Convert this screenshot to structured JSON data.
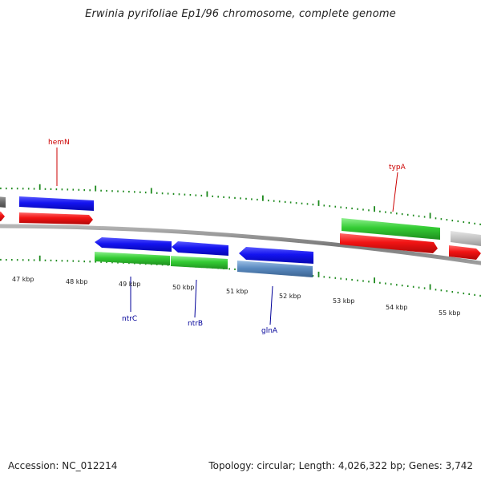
{
  "title": "Erwinia pyrifoliae Ep1/96 chromosome, complete genome",
  "footer": {
    "accession": "Accession: NC_012214",
    "summary": "Topology: circular; Length: 4,026,322 bp; Genes: 3,742"
  },
  "colors": {
    "backbone": "#8a8a8a",
    "tick": "#1f8a1f",
    "label_red": "#cc0000",
    "label_blue": "#000099",
    "blue_gene": "#1010ee",
    "red_gene": "#ee1111",
    "green_gene": "#33cc33",
    "steel_gene": "#5a8ac0",
    "gray_gene": "#c4c4c4"
  },
  "kbp_labels": [
    "47 kbp",
    "48 kbp",
    "49 kbp",
    "50 kbp",
    "51 kbp",
    "52 kbp",
    "53 kbp",
    "54 kbp",
    "55 kbp"
  ],
  "gene_labels": [
    {
      "name": "hemN",
      "color": "red"
    },
    {
      "name": "typA",
      "color": "red"
    },
    {
      "name": "ntrC",
      "color": "blue"
    },
    {
      "name": "ntrB",
      "color": "blue"
    },
    {
      "name": "glnA",
      "color": "blue"
    }
  ]
}
